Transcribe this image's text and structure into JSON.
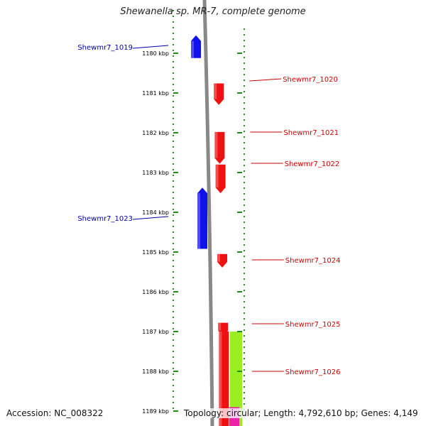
{
  "title": "Shewanella sp. MR-7, complete genome",
  "footer": {
    "accession": "Accession: NC_008322",
    "topology": "Topology: circular; Length: 4,792,610 bp; Genes: 4,149"
  },
  "ticks": [
    {
      "label": "1180 kbp",
      "kbp": 1180
    },
    {
      "label": "1181 kbp",
      "kbp": 1181
    },
    {
      "label": "1182 kbp",
      "kbp": 1182
    },
    {
      "label": "1183 kbp",
      "kbp": 1183
    },
    {
      "label": "1184 kbp",
      "kbp": 1184
    },
    {
      "label": "1185 kbp",
      "kbp": 1185
    },
    {
      "label": "1186 kbp",
      "kbp": 1186
    },
    {
      "label": "1187 kbp",
      "kbp": 1187
    },
    {
      "label": "1188 kbp",
      "kbp": 1188
    },
    {
      "label": "1189 kbp",
      "kbp": 1189
    }
  ],
  "genes": [
    {
      "name": "Shewmr7_1019",
      "strand": "reverse",
      "start_kbp": 1179.55,
      "end_kbp": 1180.12
    },
    {
      "name": "Shewmr7_1020",
      "strand": "forward",
      "start_kbp": 1180.76,
      "end_kbp": 1181.3
    },
    {
      "name": "Shewmr7_1021",
      "strand": "forward",
      "start_kbp": 1181.98,
      "end_kbp": 1182.78
    },
    {
      "name": "Shewmr7_1022",
      "strand": "forward",
      "start_kbp": 1182.8,
      "end_kbp": 1183.52
    },
    {
      "name": "Shewmr7_1023",
      "strand": "reverse",
      "start_kbp": 1183.38,
      "end_kbp": 1184.92
    },
    {
      "name": "Shewmr7_1024",
      "strand": "forward",
      "start_kbp": 1185.05,
      "end_kbp": 1185.39
    },
    {
      "name": "Shewmr7_1025",
      "strand": "forward",
      "start_kbp": 1186.78,
      "end_kbp": 1187.12
    },
    {
      "name": "Shewmr7_1026",
      "strand": "forward",
      "start_kbp": 1187.0,
      "end_kbp": 1189.6
    }
  ],
  "other_features": [
    {
      "kind": "feature",
      "color": "#99ee22",
      "start_kbp": 1187.0,
      "end_kbp": 1189.6
    },
    {
      "kind": "feature",
      "color": "#ee22aa",
      "start_kbp": 1188.9,
      "end_kbp": 1189.6
    }
  ],
  "colors": {
    "forward": "#ee1111",
    "reverse": "#1111ee",
    "forward_label": "#cc0000",
    "reverse_label": "#0000aa",
    "tick": "#228b22",
    "backbone": "#888888"
  }
}
